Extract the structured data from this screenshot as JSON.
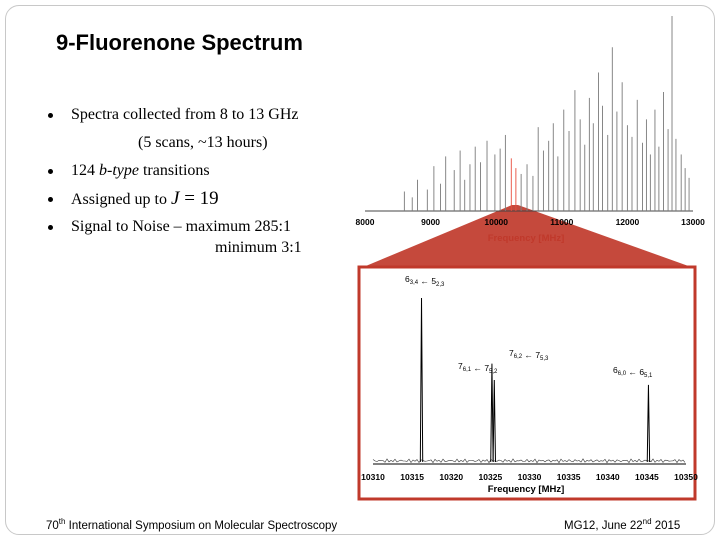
{
  "slide": {
    "title": "9-Fluorenone Spectrum",
    "bullets": {
      "b1": "Spectra collected from 8 to 13 GHz",
      "b1_cont": "(5 scans, ~13 hours)",
      "b2_prefix": "124 ",
      "b2_italic": "b-type",
      "b2_suffix": " transitions",
      "b3_prefix": "Assigned up to ",
      "b3_symbol": "J",
      "b3_suffix": " = 19",
      "b4": "Signal to Noise –  maximum 285:1",
      "b4_cont": "minimum 3:1"
    },
    "footer": {
      "left_main": "70",
      "left_sup": "th",
      "left_rest": " International Symposium on Molecular Spectroscopy",
      "right_main": "MG12, June 22",
      "right_sup": "nd",
      "right_rest": " 2015"
    }
  },
  "chart_data": [
    {
      "type": "line",
      "xlabel": "Frequency [MHz]",
      "ylabel": "",
      "xlim": [
        8000,
        13000
      ],
      "x_ticks": [
        "8000",
        "9000",
        "10000",
        "11000",
        "12000",
        "13000"
      ],
      "colors": {
        "signal": "#7a7a7a",
        "axis_label": "#c0392b",
        "highlight": "#e74c3c"
      },
      "peaks": [
        {
          "x": 8600,
          "y": 0.1
        },
        {
          "x": 8720,
          "y": 0.07
        },
        {
          "x": 8800,
          "y": 0.16
        },
        {
          "x": 8950,
          "y": 0.11
        },
        {
          "x": 9050,
          "y": 0.23
        },
        {
          "x": 9150,
          "y": 0.14
        },
        {
          "x": 9230,
          "y": 0.28
        },
        {
          "x": 9360,
          "y": 0.21
        },
        {
          "x": 9450,
          "y": 0.31
        },
        {
          "x": 9520,
          "y": 0.16
        },
        {
          "x": 9600,
          "y": 0.24
        },
        {
          "x": 9680,
          "y": 0.33
        },
        {
          "x": 9760,
          "y": 0.25
        },
        {
          "x": 9860,
          "y": 0.36
        },
        {
          "x": 9980,
          "y": 0.29
        },
        {
          "x": 10060,
          "y": 0.32
        },
        {
          "x": 10140,
          "y": 0.39
        },
        {
          "x": 10230,
          "y": 0.27
        },
        {
          "x": 10300,
          "y": 0.22
        },
        {
          "x": 10380,
          "y": 0.19
        },
        {
          "x": 10470,
          "y": 0.24
        },
        {
          "x": 10560,
          "y": 0.18
        },
        {
          "x": 10640,
          "y": 0.43
        },
        {
          "x": 10720,
          "y": 0.31
        },
        {
          "x": 10800,
          "y": 0.36
        },
        {
          "x": 10870,
          "y": 0.45
        },
        {
          "x": 10940,
          "y": 0.28
        },
        {
          "x": 11030,
          "y": 0.52
        },
        {
          "x": 11110,
          "y": 0.41
        },
        {
          "x": 11200,
          "y": 0.62
        },
        {
          "x": 11280,
          "y": 0.47
        },
        {
          "x": 11350,
          "y": 0.34
        },
        {
          "x": 11420,
          "y": 0.58
        },
        {
          "x": 11480,
          "y": 0.45
        },
        {
          "x": 11560,
          "y": 0.71
        },
        {
          "x": 11620,
          "y": 0.54
        },
        {
          "x": 11700,
          "y": 0.39
        },
        {
          "x": 11770,
          "y": 0.84
        },
        {
          "x": 11840,
          "y": 0.51
        },
        {
          "x": 11920,
          "y": 0.66
        },
        {
          "x": 12000,
          "y": 0.44
        },
        {
          "x": 12070,
          "y": 0.38
        },
        {
          "x": 12150,
          "y": 0.57
        },
        {
          "x": 12230,
          "y": 0.35
        },
        {
          "x": 12290,
          "y": 0.47
        },
        {
          "x": 12350,
          "y": 0.29
        },
        {
          "x": 12420,
          "y": 0.52
        },
        {
          "x": 12480,
          "y": 0.33
        },
        {
          "x": 12550,
          "y": 0.61
        },
        {
          "x": 12620,
          "y": 0.42
        },
        {
          "x": 12680,
          "y": 1.0
        },
        {
          "x": 12740,
          "y": 0.37
        },
        {
          "x": 12820,
          "y": 0.29
        },
        {
          "x": 12880,
          "y": 0.22
        },
        {
          "x": 12940,
          "y": 0.17
        }
      ]
    },
    {
      "type": "line",
      "xlabel": "Frequency [MHz]",
      "ylabel": "",
      "xlim": [
        10310,
        10350
      ],
      "x_ticks": [
        "10310",
        "10315",
        "10320",
        "10325",
        "10330",
        "10335",
        "10340",
        "10345",
        "10350"
      ],
      "colors": {
        "signal": "#000000",
        "frame": "#c0392b"
      },
      "peaks": [
        {
          "x": 10316.2,
          "y": 1.0
        },
        {
          "x": 10325.2,
          "y": 0.6
        },
        {
          "x": 10325.5,
          "y": 0.5
        },
        {
          "x": 10345.2,
          "y": 0.47
        }
      ],
      "annotations": [
        {
          "upper": [
            "6",
            "3,4"
          ],
          "arrow": " ← ",
          "lower": [
            "5",
            "2,3"
          ]
        },
        {
          "upper": [
            "7",
            "6,2"
          ],
          "arrow": " ← ",
          "lower": [
            "7",
            "5,3"
          ]
        },
        {
          "upper": [
            "7",
            "6,1"
          ],
          "arrow": " ← ",
          "lower": [
            "7",
            "5,2"
          ]
        },
        {
          "upper": [
            "6",
            "6,0"
          ],
          "arrow": " ← ",
          "lower": [
            "6",
            "5,1"
          ]
        }
      ]
    }
  ]
}
